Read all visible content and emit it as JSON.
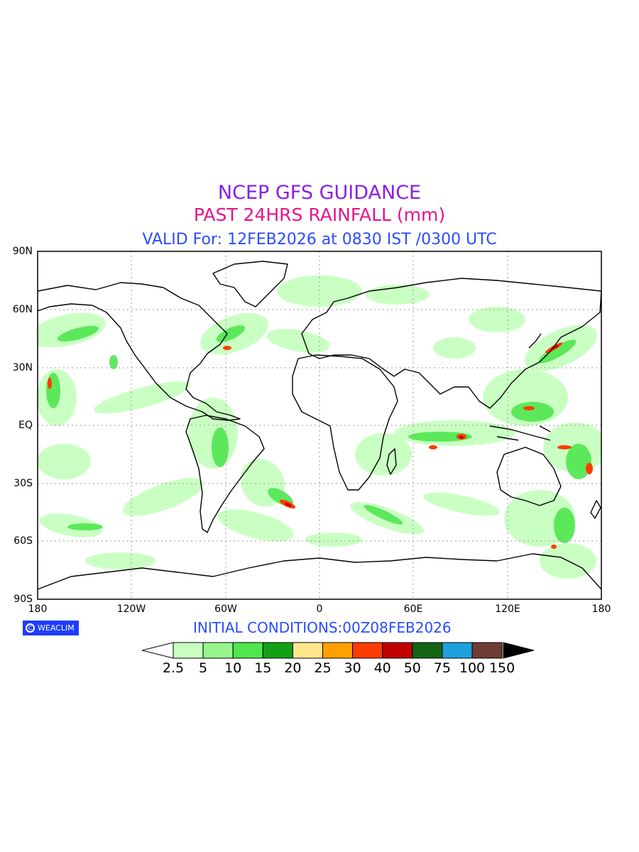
{
  "titles": {
    "line1": "NCEP GFS GUIDANCE",
    "line2": "PAST 24HRS RAINFALL (mm)",
    "line3": "VALID For: 12FEB2026 at 0830 IST /0300 UTC"
  },
  "colors": {
    "line1": "#8a1ee6",
    "line2": "#e6148c",
    "line3": "#2a4cff",
    "init": "#2a4cff",
    "grid": "#9a9a9a",
    "coast": "#000000"
  },
  "map": {
    "lat_labels": [
      "90N",
      "60N",
      "30N",
      "EQ",
      "30S",
      "60S",
      "90S"
    ],
    "lon_labels": [
      "180",
      "120W",
      "60W",
      "0",
      "60E",
      "120E",
      "180"
    ]
  },
  "logo": {
    "icon": "copyright-circle-icon",
    "text": "WEACLIM"
  },
  "initial_conditions": "INITIAL CONDITIONS:00Z08FEB2026",
  "legend": {
    "labels": [
      "2.5",
      "5",
      "10",
      "15",
      "20",
      "25",
      "30",
      "40",
      "50",
      "75",
      "100",
      "150"
    ],
    "colors": [
      "#c8ffc0",
      "#96f58c",
      "#50e650",
      "#14a014",
      "#ffe68c",
      "#ffa000",
      "#ff3c00",
      "#c00000",
      "#146414",
      "#1ea0dc",
      "#6e3c32",
      "#000000"
    ]
  }
}
